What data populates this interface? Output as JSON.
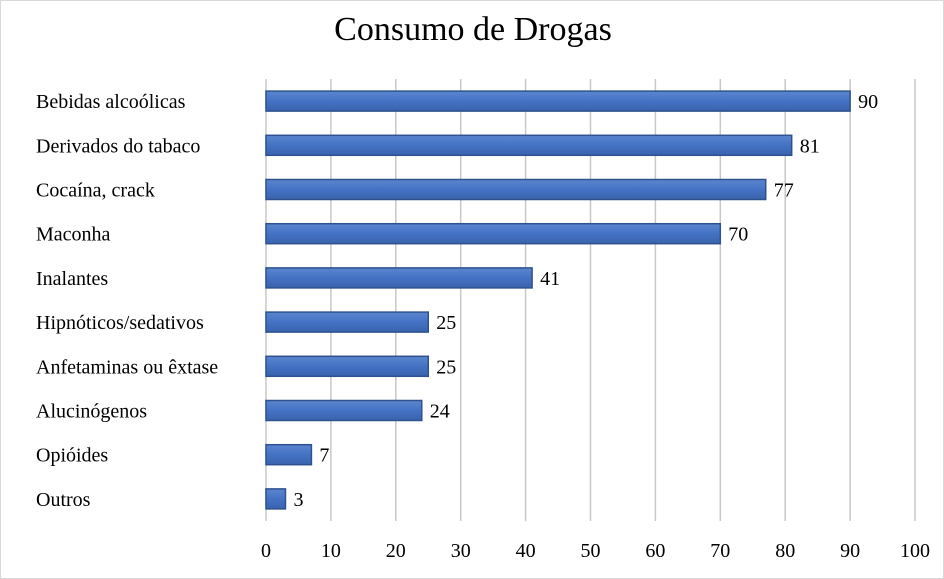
{
  "chart_data": {
    "type": "bar",
    "orientation": "horizontal",
    "title": "Consumo de Drogas",
    "categories": [
      "Bebidas alcoólicas",
      "Derivados do tabaco",
      "Cocaína, crack",
      "Maconha",
      "Inalantes",
      "Hipnóticos/sedativos",
      "Anfetaminas ou êxtase",
      "Alucinógenos",
      "Opióides",
      "Outros"
    ],
    "values": [
      90,
      81,
      77,
      70,
      41,
      25,
      25,
      24,
      7,
      3
    ],
    "value_labels": [
      "90",
      "81",
      "77",
      "70",
      "41",
      "25",
      "25",
      "24",
      "7",
      "3"
    ],
    "xlim": [
      0,
      100
    ],
    "x_ticks": [
      0,
      10,
      20,
      30,
      40,
      50,
      60,
      70,
      80,
      90,
      100
    ],
    "x_tick_labels": [
      "0",
      "10",
      "20",
      "30",
      "40",
      "50",
      "60",
      "70",
      "80",
      "90",
      "100"
    ],
    "xlabel": "",
    "ylabel": "",
    "grid": true,
    "bar_color": "#4472c4",
    "bar_edge_color": "#2f528f",
    "grid_color": "#c8c8c8"
  }
}
